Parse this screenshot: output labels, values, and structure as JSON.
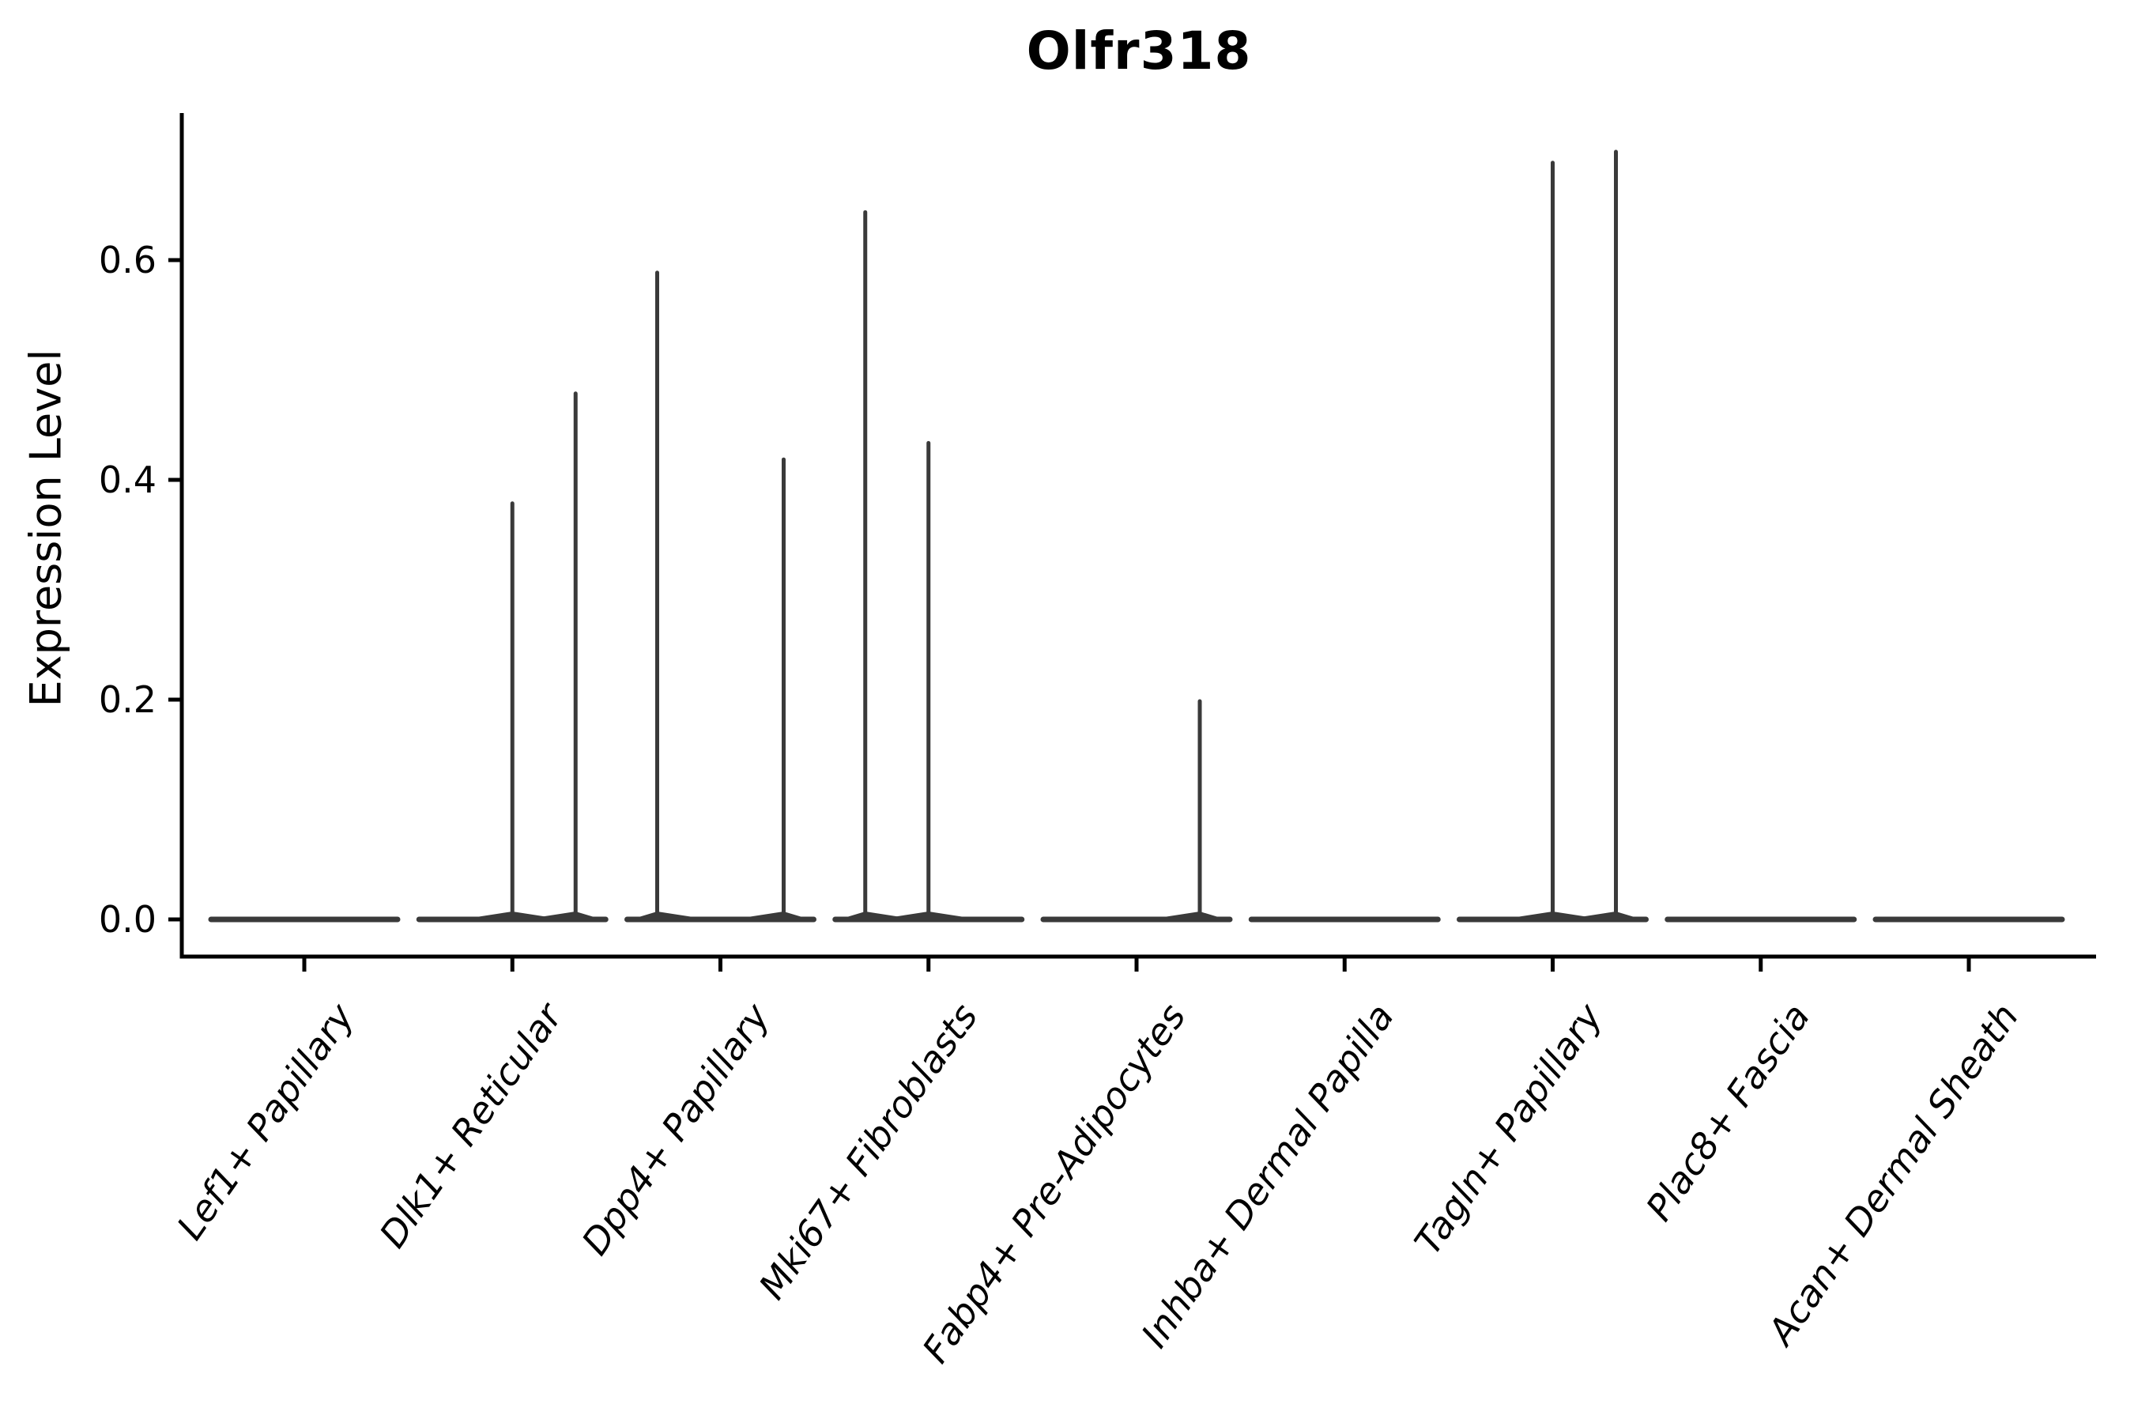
{
  "chart_data": {
    "type": "violin",
    "title": "Olfr318",
    "ylabel": "Expression Level",
    "xlabel": "",
    "grid": false,
    "legend_position": "none",
    "ylim": [
      -0.035,
      0.735
    ],
    "ytick_labels": [
      "0.0",
      "0.2",
      "0.4",
      "0.6"
    ],
    "ytick_values": [
      0.0,
      0.2,
      0.4,
      0.6
    ],
    "categories": [
      "Lef1+ Papillary",
      "Dlk1+ Reticular",
      "Dpp4+ Papillary",
      "Mki67+ Fibroblasts",
      "Fabp4+ Pre-Adipocytes",
      "Inhba+ Dermal Papilla",
      "Tagln+ Papillary",
      "Plac8+ Fascia",
      "Acan+ Dermal Sheath"
    ],
    "violins": [
      {
        "category": "Lef1+ Papillary",
        "zero_density_bar": true,
        "spikes": []
      },
      {
        "category": "Dlk1+ Reticular",
        "zero_density_bar": true,
        "spikes": [
          {
            "offset_slot": 0,
            "value": 0.38
          },
          {
            "offset_slot": 1,
            "value": 0.48
          }
        ]
      },
      {
        "category": "Dpp4+ Papillary",
        "zero_density_bar": true,
        "spikes": [
          {
            "offset_slot": -1,
            "value": 0.59
          },
          {
            "offset_slot": 1,
            "value": 0.42
          }
        ]
      },
      {
        "category": "Mki67+ Fibroblasts",
        "zero_density_bar": true,
        "spikes": [
          {
            "offset_slot": -1,
            "value": 0.645
          },
          {
            "offset_slot": 0,
            "value": 0.435
          }
        ]
      },
      {
        "category": "Fabp4+ Pre-Adipocytes",
        "zero_density_bar": true,
        "spikes": [
          {
            "offset_slot": 1,
            "value": 0.2
          }
        ]
      },
      {
        "category": "Inhba+ Dermal Papilla",
        "zero_density_bar": true,
        "spikes": []
      },
      {
        "category": "Tagln+ Papillary",
        "zero_density_bar": true,
        "spikes": [
          {
            "offset_slot": 0,
            "value": 0.69
          },
          {
            "offset_slot": 1,
            "value": 0.7
          }
        ]
      },
      {
        "category": "Plac8+ Fascia",
        "zero_density_bar": true,
        "spikes": []
      },
      {
        "category": "Acan+ Dermal Sheath",
        "zero_density_bar": true,
        "spikes": []
      }
    ],
    "colors": {
      "violin_stroke": "#3a3a3a",
      "axis": "#000000",
      "text": "#000000",
      "background": "#ffffff"
    }
  }
}
